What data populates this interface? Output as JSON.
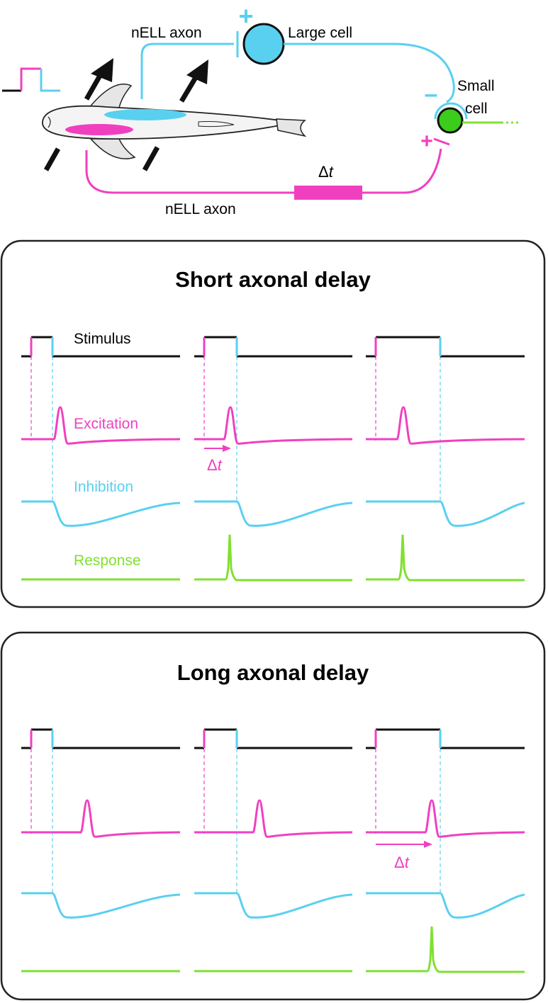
{
  "colors": {
    "excitation": "#f040c0",
    "inhibition": "#5ad0f0",
    "response": "#80e030",
    "small_cell_fill": "#3ccc1c",
    "stimulus": "#111111"
  },
  "circuit": {
    "top_axon_label": "nELL axon",
    "bottom_axon_label": "nELL axon",
    "large_cell_label": "Large cell",
    "small_cell_label_1": "Small",
    "small_cell_label_2": "cell",
    "delay_label_delta": "Δ",
    "delay_label_t": "t",
    "plus_sign": "+",
    "minus_sign": "–"
  },
  "panels": [
    {
      "title": "Short axonal delay",
      "trace_labels": {
        "stimulus": "Stimulus",
        "excitation": "Excitation",
        "inhibition": "Inhibition",
        "response": "Response"
      },
      "delta_t_delta": "Δ",
      "delta_t_t": "t"
    },
    {
      "title": "Long axonal delay",
      "trace_labels": {
        "stimulus": "",
        "excitation": "",
        "inhibition": "",
        "response": ""
      },
      "delta_t_delta": "Δ",
      "delta_t_t": "t"
    }
  ]
}
